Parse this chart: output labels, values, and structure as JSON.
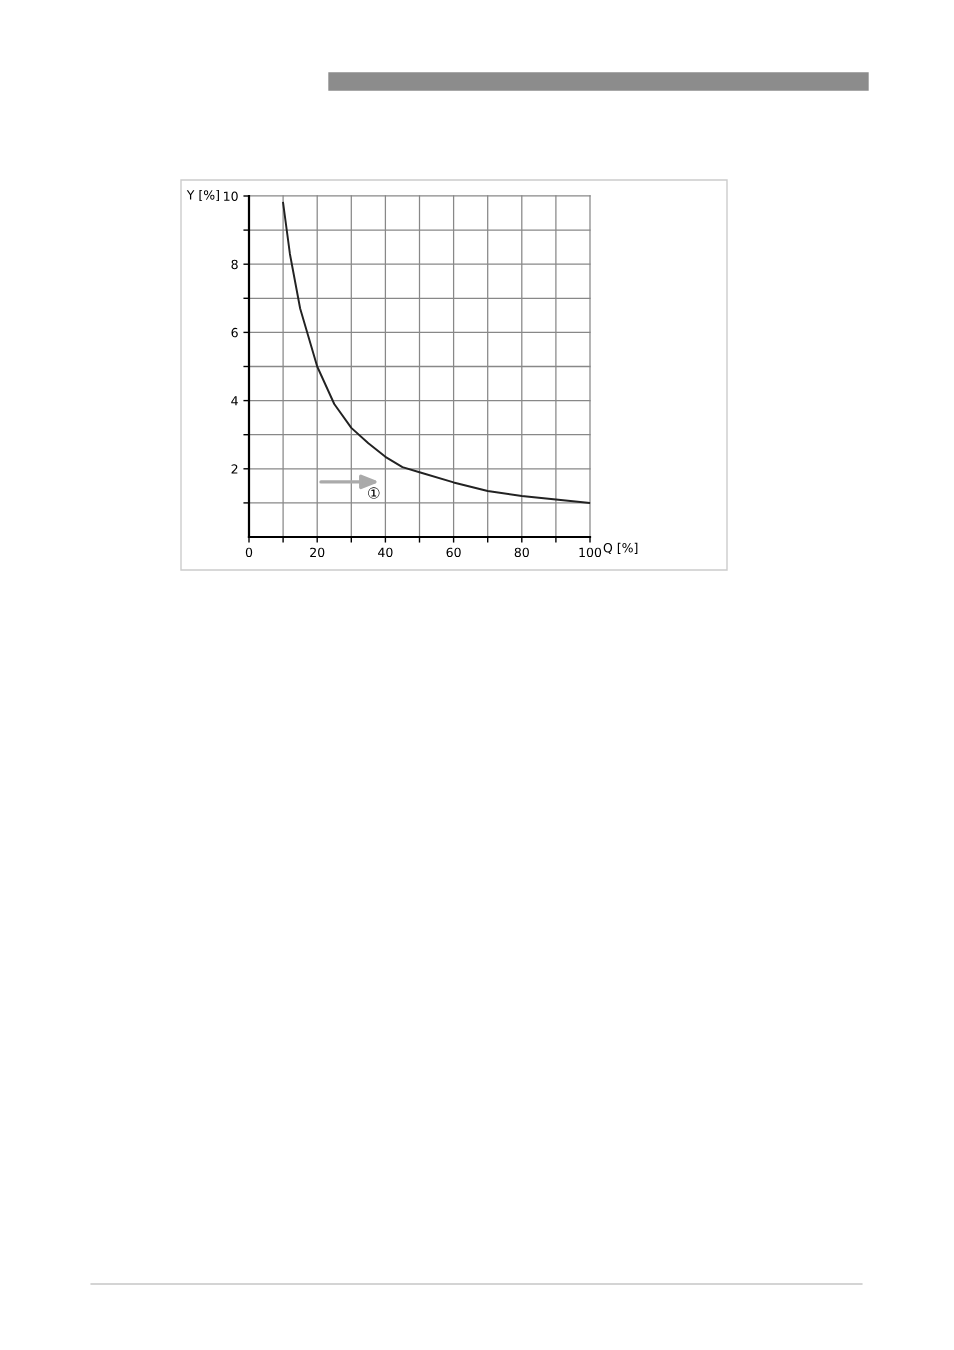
{
  "chart_data": {
    "type": "line",
    "xlabel": "Q [%]",
    "ylabel": "Y [%]",
    "x": [
      10,
      12,
      15,
      20,
      25,
      30,
      35,
      40,
      45,
      50,
      60,
      70,
      80,
      90,
      100
    ],
    "series": [
      {
        "color": "#222222",
        "values": [
          9.8,
          8.3,
          6.7,
          5.0,
          3.9,
          3.2,
          2.75,
          2.35,
          2.05,
          1.9,
          1.6,
          1.35,
          1.2,
          1.1,
          1.0
        ]
      }
    ],
    "xlim": [
      0,
      100
    ],
    "ylim": [
      0,
      10
    ],
    "xticks": [
      0,
      {
        "value": 10,
        "label": null
      },
      20,
      {
        "value": 30,
        "label": null
      },
      40,
      {
        "value": 50,
        "label": null
      },
      60,
      {
        "value": 70,
        "label": null
      },
      80,
      {
        "value": 90,
        "label": null
      },
      100
    ],
    "yticks": [
      {
        "value": 1,
        "label": null
      },
      2,
      {
        "value": 3,
        "label": null
      },
      4,
      {
        "value": 5,
        "label": null
      },
      6,
      {
        "value": 7,
        "label": null
      },
      8,
      {
        "value": 9,
        "label": null
      },
      10
    ],
    "grid": true,
    "marker": "none",
    "line_style": "solid",
    "annotations": [
      "①"
    ]
  }
}
